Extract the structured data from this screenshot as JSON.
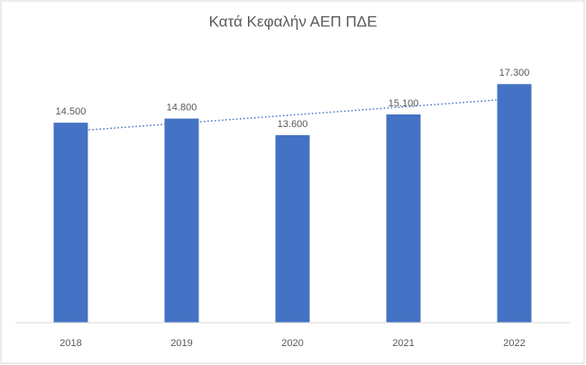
{
  "chart_data": {
    "type": "bar",
    "title": "Κατά Κεφαλήν ΑΕΠ ΠΔΕ",
    "categories": [
      "2018",
      "2019",
      "2020",
      "2021",
      "2022"
    ],
    "values": [
      14500,
      14800,
      13600,
      15100,
      17300
    ],
    "value_labels": [
      "14.500",
      "14.800",
      "13.600",
      "15.100",
      "17.300"
    ],
    "color": "#4472c4",
    "ylim": [
      0,
      20000
    ],
    "trendline": true
  }
}
